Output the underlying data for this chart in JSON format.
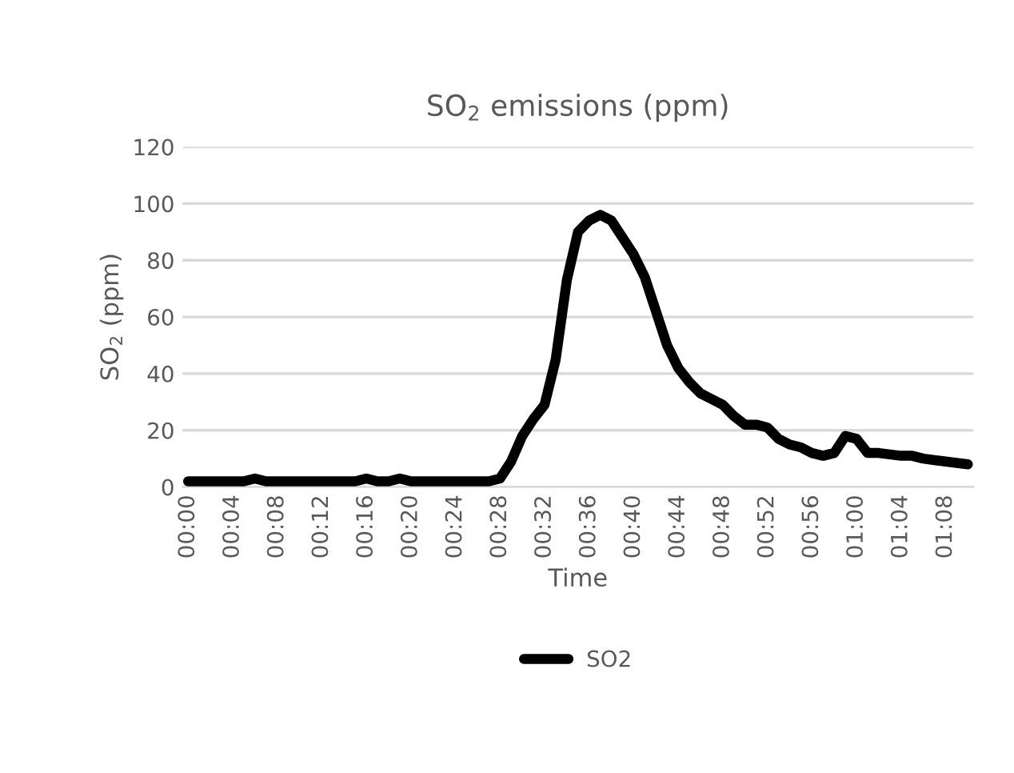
{
  "chart_data": {
    "type": "line",
    "title": "SO$_{2}$ emissions (ppm)",
    "xlabel": "Time",
    "ylabel": "SO$_{2}$ (ppm)",
    "categories": [
      "00:00",
      null,
      null,
      null,
      "00:04",
      null,
      null,
      null,
      "00:08",
      null,
      null,
      null,
      "00:12",
      null,
      null,
      null,
      "00:16",
      null,
      null,
      null,
      "00:20",
      null,
      null,
      null,
      "00:24",
      null,
      null,
      null,
      "00:28",
      null,
      null,
      null,
      "00:32",
      null,
      null,
      null,
      "00:36",
      null,
      null,
      null,
      "00:40",
      null,
      null,
      null,
      "00:44",
      null,
      null,
      null,
      "00:48",
      null,
      null,
      null,
      "00:52",
      null,
      null,
      null,
      "00:56",
      null,
      null,
      null,
      "01:00",
      null,
      null,
      null,
      "01:04",
      null,
      null,
      null,
      "01:08",
      null,
      null
    ],
    "series": [
      {
        "name": "SO2",
        "color": "#000000",
        "values": [
          2,
          2,
          2,
          2,
          2,
          2,
          3,
          2,
          2,
          2,
          2,
          2,
          2,
          2,
          2,
          2,
          3,
          2,
          2,
          3,
          2,
          2,
          2,
          2,
          2,
          2,
          2,
          2,
          3,
          9,
          18,
          24,
          29,
          45,
          73,
          90,
          94,
          96,
          94,
          88,
          82,
          74,
          62,
          50,
          42,
          37,
          33,
          31,
          29,
          25,
          22,
          22,
          21,
          17,
          15,
          14,
          12,
          11,
          12,
          18,
          17,
          12,
          12,
          11.5,
          11,
          11,
          10,
          9.5,
          9,
          8.5,
          8
        ]
      }
    ],
    "ylim": [
      0,
      120
    ],
    "yticks": [
      0,
      20,
      40,
      60,
      80,
      100,
      120
    ],
    "grid": "y",
    "legend": "bottom",
    "marker": "none",
    "line_style": "solid"
  }
}
